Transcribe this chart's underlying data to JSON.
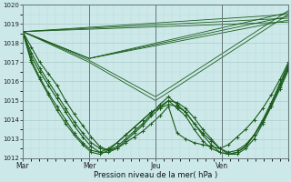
{
  "bg_color": "#cce8e8",
  "grid_major_color": "#aacccc",
  "grid_minor_color": "#bbdddd",
  "line_color": "#1a5c1a",
  "xlabel": "Pression niveau de la mer( hPa )",
  "ylim": [
    1012,
    1020
  ],
  "yticks": [
    1012,
    1013,
    1014,
    1015,
    1016,
    1017,
    1018,
    1019,
    1020
  ],
  "day_labels": [
    "Mar",
    "Mer",
    "Jeu",
    "Ven"
  ],
  "day_ticks": [
    0,
    8,
    16,
    24
  ],
  "xlim": [
    0,
    32
  ],
  "series_with_markers": [
    [
      1018.6,
      1017.8,
      1017.0,
      1016.4,
      1015.8,
      1015.0,
      1014.3,
      1013.7,
      1013.1,
      1012.6,
      1012.4,
      1012.5,
      1012.8,
      1013.1,
      1013.4,
      1013.8,
      1014.2,
      1014.7,
      1013.3,
      1013.0,
      1012.8,
      1012.7,
      1012.6,
      1012.5,
      1012.7,
      1013.1,
      1013.5,
      1014.0,
      1014.6,
      1015.3,
      1016.1,
      1017.0
    ],
    [
      1018.6,
      1017.5,
      1016.7,
      1016.0,
      1015.3,
      1014.6,
      1013.9,
      1013.3,
      1012.8,
      1012.5,
      1012.4,
      1012.6,
      1013.0,
      1013.4,
      1013.8,
      1014.3,
      1014.8,
      1015.2,
      1014.8,
      1014.4,
      1013.8,
      1013.3,
      1012.9,
      1012.5,
      1012.3,
      1012.4,
      1012.7,
      1013.2,
      1013.9,
      1014.7,
      1015.6,
      1016.6
    ],
    [
      1018.6,
      1017.3,
      1016.5,
      1015.8,
      1015.1,
      1014.4,
      1013.7,
      1013.1,
      1012.6,
      1012.3,
      1012.3,
      1012.5,
      1012.9,
      1013.3,
      1013.7,
      1014.2,
      1014.6,
      1015.0,
      1014.6,
      1014.2,
      1013.5,
      1012.9,
      1012.5,
      1012.3,
      1012.2,
      1012.3,
      1012.6,
      1013.2,
      1013.9,
      1014.8,
      1015.8,
      1016.8
    ],
    [
      1018.6,
      1017.1,
      1016.2,
      1015.4,
      1014.7,
      1014.0,
      1013.3,
      1012.8,
      1012.4,
      1012.3,
      1012.5,
      1012.8,
      1013.2,
      1013.6,
      1014.0,
      1014.4,
      1014.7,
      1015.0,
      1014.9,
      1014.6,
      1014.1,
      1013.5,
      1013.0,
      1012.5,
      1012.2,
      1012.2,
      1012.5,
      1013.0,
      1013.8,
      1014.7,
      1015.7,
      1016.7
    ],
    [
      1018.6,
      1017.0,
      1016.1,
      1015.3,
      1014.5,
      1013.8,
      1013.2,
      1012.7,
      1012.3,
      1012.2,
      1012.4,
      1012.8,
      1013.2,
      1013.6,
      1014.0,
      1014.4,
      1014.6,
      1014.8,
      1014.7,
      1014.4,
      1013.8,
      1013.2,
      1012.7,
      1012.3,
      1012.2,
      1012.3,
      1012.6,
      1013.2,
      1014.0,
      1014.9,
      1015.9,
      1016.9
    ]
  ],
  "series_straight": [
    [
      [
        0,
        1018.6
      ],
      [
        32,
        1019.5
      ]
    ],
    [
      [
        0,
        1018.6
      ],
      [
        32,
        1019.3
      ]
    ],
    [
      [
        0,
        1018.6
      ],
      [
        32,
        1019.1
      ]
    ],
    [
      [
        0,
        1018.6
      ],
      [
        8,
        1017.2
      ],
      [
        32,
        1019.6
      ]
    ],
    [
      [
        0,
        1018.6
      ],
      [
        8,
        1017.2
      ],
      [
        32,
        1019.4
      ]
    ],
    [
      [
        0,
        1018.6
      ],
      [
        8,
        1017.2
      ],
      [
        32,
        1019.2
      ]
    ],
    [
      [
        0,
        1018.6
      ],
      [
        8,
        1017.1
      ],
      [
        16,
        1015.2
      ],
      [
        32,
        1019.7
      ]
    ],
    [
      [
        0,
        1018.6
      ],
      [
        8,
        1017.0
      ],
      [
        16,
        1015.0
      ],
      [
        32,
        1019.5
      ]
    ]
  ]
}
